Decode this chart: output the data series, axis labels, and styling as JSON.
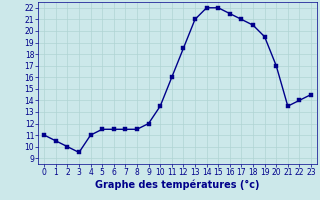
{
  "x": [
    0,
    1,
    2,
    3,
    4,
    5,
    6,
    7,
    8,
    9,
    10,
    11,
    12,
    13,
    14,
    15,
    16,
    17,
    18,
    19,
    20,
    21,
    22,
    23
  ],
  "y": [
    11,
    10.5,
    10,
    9.5,
    11,
    11.5,
    11.5,
    11.5,
    11.5,
    12,
    13.5,
    16,
    18.5,
    21,
    22,
    22,
    21.5,
    21,
    20.5,
    19.5,
    17,
    13.5,
    14,
    14.5
  ],
  "xlabel": "Graphe des températures (°c)",
  "xlim_min": -0.5,
  "xlim_max": 23.5,
  "ylim_min": 8.5,
  "ylim_max": 22.5,
  "yticks": [
    9,
    10,
    11,
    12,
    13,
    14,
    15,
    16,
    17,
    18,
    19,
    20,
    21,
    22
  ],
  "xticks": [
    0,
    1,
    2,
    3,
    4,
    5,
    6,
    7,
    8,
    9,
    10,
    11,
    12,
    13,
    14,
    15,
    16,
    17,
    18,
    19,
    20,
    21,
    22,
    23
  ],
  "line_color": "#00008b",
  "marker_color": "#00008b",
  "bg_color": "#cce8ea",
  "grid_color": "#b0d4d4",
  "tick_label_color": "#00008b",
  "xlabel_color": "#00008b",
  "xlabel_fontsize": 7,
  "tick_fontsize": 5.5,
  "line_width": 1.0,
  "marker_size": 2.5
}
